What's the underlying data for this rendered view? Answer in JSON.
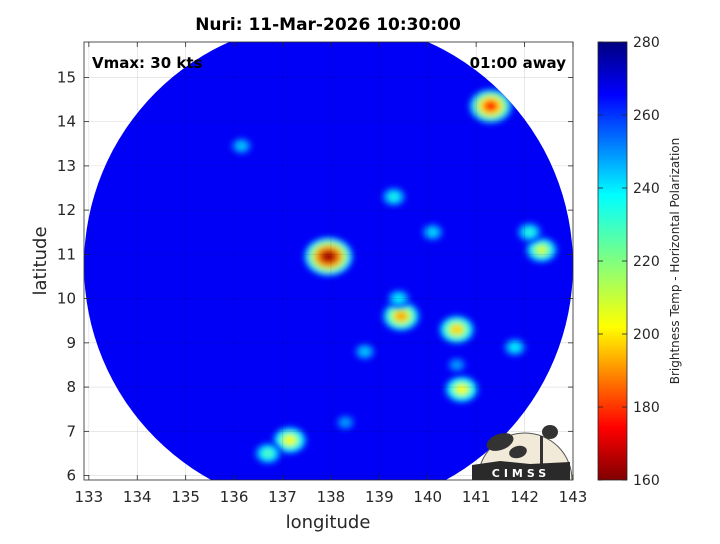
{
  "chart_data": {
    "type": "heatmap",
    "title": "Nuri: 11-Mar-2026 10:30:00",
    "xlabel": "longitude",
    "ylabel": "latitude",
    "xlim": [
      132.9,
      143.0
    ],
    "ylim": [
      5.9,
      15.8
    ],
    "xticks": [
      133,
      134,
      135,
      136,
      137,
      138,
      139,
      140,
      141,
      142,
      143
    ],
    "yticks": [
      6,
      7,
      8,
      9,
      10,
      11,
      12,
      13,
      14,
      15
    ],
    "grid": true,
    "annotations": {
      "vmax": "Vmax: 30 kts",
      "time_away": "01:00 away"
    },
    "colorbar": {
      "label": "Brightness Temp - Horizontal Polarization",
      "range": [
        160,
        280
      ],
      "ticks": [
        160,
        180,
        200,
        220,
        240,
        260,
        280
      ],
      "colormap": "jet"
    },
    "swath": {
      "center_lon": 137.95,
      "center_lat": 10.75,
      "radius_deg": 5.05,
      "background_value": 266
    },
    "features": [
      {
        "lon": 137.95,
        "lat": 10.95,
        "value": 165
      },
      {
        "lon": 141.3,
        "lat": 14.35,
        "value": 180
      },
      {
        "lon": 139.45,
        "lat": 9.6,
        "value": 195
      },
      {
        "lon": 139.4,
        "lat": 10.0,
        "value": 235
      },
      {
        "lon": 140.6,
        "lat": 9.3,
        "value": 200
      },
      {
        "lon": 140.7,
        "lat": 7.95,
        "value": 205
      },
      {
        "lon": 137.15,
        "lat": 6.8,
        "value": 205
      },
      {
        "lon": 136.7,
        "lat": 6.5,
        "value": 225
      },
      {
        "lon": 142.35,
        "lat": 11.1,
        "value": 210
      },
      {
        "lon": 142.1,
        "lat": 11.5,
        "value": 230
      },
      {
        "lon": 139.3,
        "lat": 12.3,
        "value": 232
      },
      {
        "lon": 140.1,
        "lat": 11.5,
        "value": 238
      },
      {
        "lon": 136.15,
        "lat": 13.45,
        "value": 240
      },
      {
        "lon": 138.7,
        "lat": 8.8,
        "value": 240
      },
      {
        "lon": 140.6,
        "lat": 8.5,
        "value": 245
      },
      {
        "lon": 141.8,
        "lat": 8.9,
        "value": 235
      },
      {
        "lon": 138.3,
        "lat": 7.2,
        "value": 245
      }
    ],
    "logo_text": "CIMSS"
  }
}
